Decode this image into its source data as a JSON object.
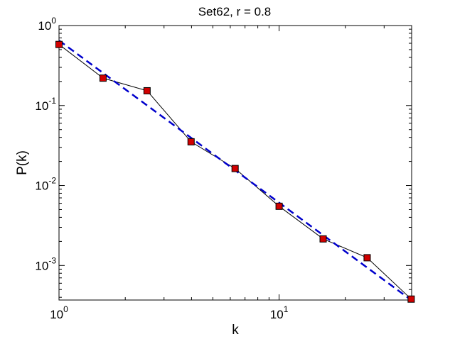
{
  "chart_data": {
    "type": "line",
    "title": "Set62, r = 0.8",
    "xlabel": "k",
    "ylabel": "P(k)",
    "x_scale": "log",
    "y_scale": "log",
    "xlim": [
      1,
      40
    ],
    "ylim": [
      0.00037,
      1
    ],
    "grid": false,
    "legend": "none",
    "x_ticks": [
      {
        "value": 1,
        "base": "10",
        "exponent": "0"
      },
      {
        "value": 10,
        "base": "10",
        "exponent": "1"
      }
    ],
    "y_ticks": [
      {
        "value": 1,
        "base": "10",
        "exponent": "0"
      },
      {
        "value": 0.1,
        "base": "10",
        "exponent": "-1"
      },
      {
        "value": 0.01,
        "base": "10",
        "exponent": "-2"
      },
      {
        "value": 0.001,
        "base": "10",
        "exponent": "-3"
      }
    ],
    "series": [
      {
        "style": "data",
        "color": "#000000",
        "marker_fill": "#d10000",
        "marker": "square",
        "x": [
          1,
          1.585,
          2.512,
          3.981,
          6.31,
          10,
          15.85,
          25.12,
          39.81
        ],
        "y": [
          0.58,
          0.22,
          0.153,
          0.0352,
          0.0163,
          0.0055,
          0.00215,
          0.00125,
          0.00038
        ]
      },
      {
        "style": "fit",
        "color": "#0000cc",
        "dash": true,
        "x": [
          1,
          39.81
        ],
        "y": [
          0.65,
          0.00037
        ]
      }
    ]
  }
}
